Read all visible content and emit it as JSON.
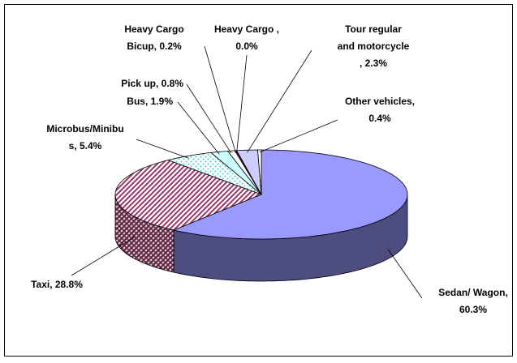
{
  "chart_data": {
    "type": "pie3d",
    "values": [
      60.3,
      28.8,
      5.4,
      1.9,
      0.8,
      0.2,
      0.0,
      2.3,
      0.4
    ],
    "value_labels": [
      [
        "Sedan/ Wagon,",
        "60.3%"
      ],
      [
        "Taxi, 28.8%"
      ],
      [
        "Microbus/Minibu",
        "s, 5.4%"
      ],
      [
        "Bus, 1.9%"
      ],
      [
        "Pick up, 0.8%"
      ],
      [
        "Heavy Cargo",
        "Bicup, 0.2%"
      ],
      [
        "Heavy Cargo ,",
        "0.0%"
      ],
      [
        "Tour regular",
        "and motorcycle",
        ", 2.3%"
      ],
      [
        "Other vehicles,",
        "0.4%"
      ]
    ],
    "colors": [
      "#9999ff",
      "#993366",
      "#33cccc",
      "#ccffff",
      "#ffffff",
      "#660066",
      "#ffffcc",
      "#ccccff",
      "#ffffff"
    ],
    "fills": [
      "solid",
      "stripes",
      "dots",
      "solid",
      "solid",
      "solid",
      "solid",
      "solid",
      "solid"
    ]
  }
}
